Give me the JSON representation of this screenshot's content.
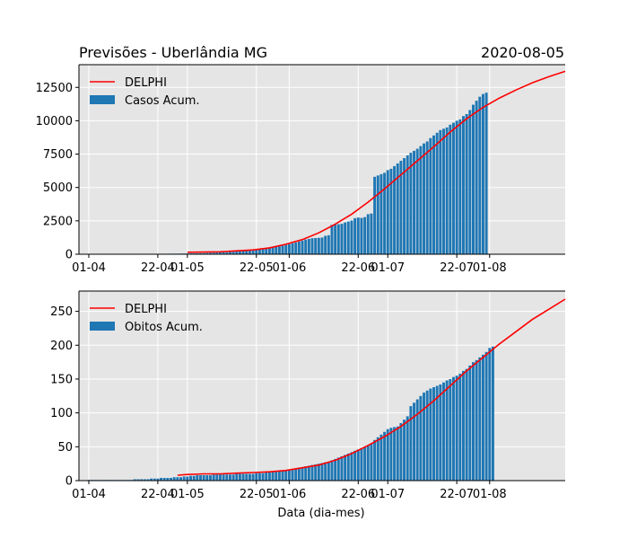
{
  "title_left": "Previsões - Uberlândia MG",
  "title_right": "2020-08-05",
  "xlabel": "Data (dia-mes)",
  "colors": {
    "bar": "#1f77b4",
    "line": "#ff0000",
    "plot_bg": "#e5e5e5",
    "grid": "#ffffff"
  },
  "x_ticks": [
    {
      "label": "01-04",
      "day": 0
    },
    {
      "label": "22-04",
      "day": 21
    },
    {
      "label": "01-05",
      "day": 30
    },
    {
      "label": "22-05",
      "day": 51
    },
    {
      "label": "01-06",
      "day": 61
    },
    {
      "label": "22-06",
      "day": 82
    },
    {
      "label": "01-07",
      "day": 91
    },
    {
      "label": "22-07",
      "day": 112
    },
    {
      "label": "01-08",
      "day": 122
    }
  ],
  "chart_data": [
    {
      "type": "bar",
      "x_start": "2020-04-01",
      "xlim_days": [
        -3,
        145
      ],
      "ylim": [
        0,
        14200
      ],
      "yticks": [
        0,
        2500,
        5000,
        7500,
        10000,
        12500
      ],
      "legend": {
        "position": "top-left",
        "line_label": "DELPHI",
        "bar_label": "Casos Acum."
      },
      "bars": [
        3,
        4,
        5,
        6,
        7,
        8,
        9,
        10,
        11,
        12,
        13,
        14,
        15,
        16,
        18,
        20,
        22,
        24,
        26,
        28,
        30,
        32,
        34,
        36,
        38,
        40,
        42,
        45,
        48,
        52,
        56,
        60,
        65,
        70,
        75,
        80,
        90,
        100,
        110,
        120,
        130,
        140,
        150,
        165,
        180,
        200,
        220,
        240,
        260,
        280,
        300,
        330,
        360,
        400,
        440,
        480,
        520,
        560,
        600,
        640,
        700,
        760,
        820,
        880,
        950,
        1020,
        1100,
        1150,
        1200,
        1210,
        1230,
        1250,
        1380,
        1420,
        2200,
        2230,
        2250,
        2280,
        2380,
        2450,
        2520,
        2700,
        2750,
        2720,
        2780,
        3000,
        3050,
        5800,
        5900,
        6000,
        6100,
        6300,
        6400,
        6600,
        6800,
        7000,
        7200,
        7400,
        7600,
        7750,
        7900,
        8100,
        8300,
        8450,
        8700,
        8900,
        9100,
        9300,
        9400,
        9500,
        9700,
        9850,
        10000,
        10100,
        10350,
        10500,
        10800,
        11200,
        11500,
        11800,
        12000,
        12100
      ],
      "line_days": [
        30,
        40,
        50,
        55,
        60,
        65,
        70,
        75,
        80,
        85,
        90,
        95,
        100,
        105,
        110,
        115,
        120,
        125,
        130,
        135,
        140,
        145
      ],
      "line": [
        150,
        180,
        320,
        480,
        750,
        1100,
        1600,
        2250,
        3000,
        3900,
        4900,
        5950,
        7000,
        8050,
        9150,
        10150,
        11000,
        11700,
        12300,
        12850,
        13300,
        13700
      ]
    },
    {
      "type": "bar",
      "x_start": "2020-04-01",
      "xlim_days": [
        -3,
        145
      ],
      "ylim": [
        0,
        280
      ],
      "yticks": [
        0,
        50,
        100,
        150,
        200,
        250
      ],
      "legend": {
        "position": "top-left",
        "line_label": "DELPHI",
        "bar_label": "Obitos Acum."
      },
      "bars": [
        1,
        1,
        1,
        1,
        1,
        1,
        1,
        1,
        1,
        1,
        1,
        1,
        1,
        1,
        2,
        2,
        2,
        2,
        2,
        3,
        3,
        3,
        4,
        4,
        4,
        4,
        5,
        5,
        5,
        6,
        6,
        7,
        7,
        8,
        8,
        8,
        8,
        8,
        9,
        9,
        9,
        9,
        9,
        9,
        9,
        10,
        10,
        10,
        10,
        10,
        10,
        11,
        11,
        11,
        12,
        12,
        13,
        13,
        14,
        14,
        15,
        16,
        17,
        18,
        19,
        20,
        21,
        22,
        23,
        24,
        25,
        26,
        27,
        28,
        30,
        32,
        34,
        36,
        38,
        40,
        42,
        44,
        46,
        48,
        50,
        52,
        55,
        60,
        64,
        68,
        72,
        76,
        78,
        79,
        80,
        85,
        90,
        95,
        110,
        115,
        120,
        125,
        130,
        133,
        136,
        138,
        140,
        142,
        145,
        148,
        150,
        153,
        155,
        158,
        162,
        165,
        170,
        175,
        178,
        182,
        186,
        190,
        196,
        198
      ],
      "line_days": [
        27,
        30,
        35,
        40,
        45,
        50,
        55,
        60,
        65,
        70,
        75,
        80,
        85,
        90,
        95,
        100,
        105,
        110,
        115,
        120,
        125,
        130,
        135,
        140,
        145
      ],
      "line": [
        8,
        9,
        10,
        10,
        11,
        12,
        13,
        15,
        19,
        23,
        30,
        40,
        52,
        65,
        80,
        98,
        118,
        140,
        162,
        182,
        202,
        220,
        238,
        253,
        268
      ]
    }
  ]
}
